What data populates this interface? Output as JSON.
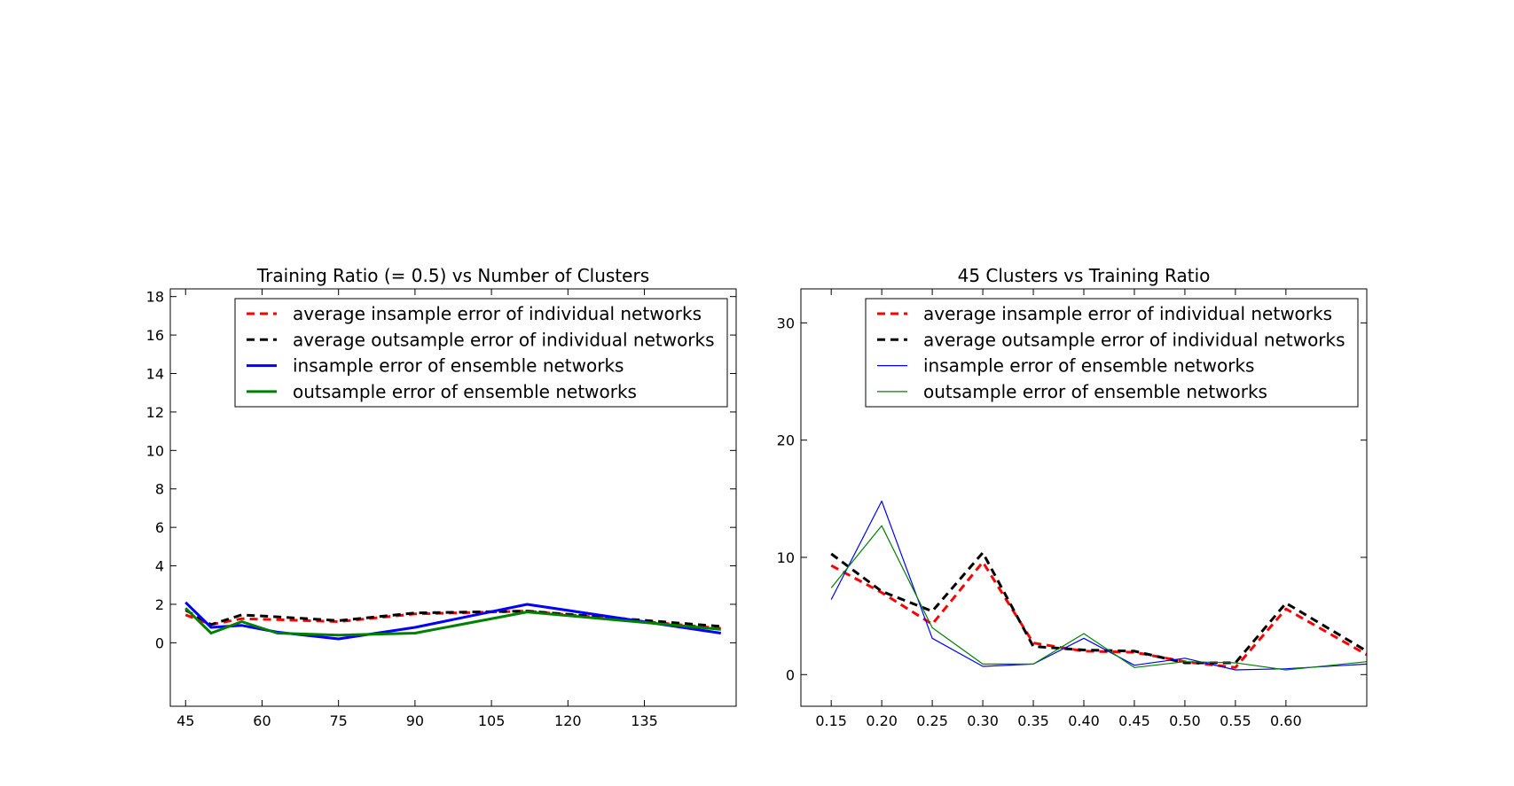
{
  "chart_data": [
    {
      "type": "line",
      "title": "Training Ratio (= 0.5) vs Number of Clusters",
      "xlabel": "",
      "ylabel": "",
      "x": [
        45,
        50,
        56,
        63,
        75,
        90,
        112,
        150
      ],
      "xlim": [
        42,
        153
      ],
      "ylim": [
        -3.3,
        18.4
      ],
      "xticks": [
        "45",
        "60",
        "75",
        "90",
        "105",
        "120",
        "135"
      ],
      "yticks": [
        "0",
        "2",
        "4",
        "6",
        "8",
        "10",
        "12",
        "14",
        "16",
        "18"
      ],
      "legend_position": "top-right",
      "series": [
        {
          "name": "average insample error of individual networks",
          "color": "#ff0000",
          "style": "dashed",
          "width": 3,
          "values": [
            1.45,
            0.95,
            1.25,
            1.2,
            1.1,
            1.5,
            1.65,
            0.75
          ]
        },
        {
          "name": "average outsample error of individual networks",
          "color": "#000000",
          "style": "dashed",
          "width": 3,
          "values": [
            1.7,
            0.95,
            1.45,
            1.35,
            1.15,
            1.55,
            1.65,
            0.85
          ]
        },
        {
          "name": "insample error of ensemble networks",
          "color": "#0000ff",
          "style": "solid",
          "width": 3,
          "values": [
            2.1,
            0.8,
            0.9,
            0.55,
            0.2,
            0.8,
            2.0,
            0.5
          ]
        },
        {
          "name": "outsample error of ensemble networks",
          "color": "#008000",
          "style": "solid",
          "width": 3,
          "values": [
            1.8,
            0.5,
            1.1,
            0.5,
            0.4,
            0.5,
            1.6,
            0.7
          ]
        }
      ]
    },
    {
      "type": "line",
      "title": "45 Clusters vs Training Ratio",
      "xlabel": "",
      "ylabel": "",
      "x": [
        0.15,
        0.2,
        0.25,
        0.3,
        0.35,
        0.4,
        0.45,
        0.5,
        0.55,
        0.6,
        0.68
      ],
      "xlim": [
        0.12,
        0.68
      ],
      "ylim": [
        -2.7,
        32.9
      ],
      "xticks": [
        "0.15",
        "0.20",
        "0.25",
        "0.30",
        "0.35",
        "0.40",
        "0.45",
        "0.50",
        "0.55",
        "0.60"
      ],
      "yticks": [
        "0",
        "10",
        "20",
        "30"
      ],
      "legend_position": "top-right",
      "series": [
        {
          "name": "average insample error of individual networks",
          "color": "#ff0000",
          "style": "dashed",
          "width": 3,
          "values": [
            9.3,
            7.0,
            4.3,
            9.6,
            2.7,
            2.0,
            1.9,
            1.1,
            0.6,
            5.6,
            1.7
          ]
        },
        {
          "name": "average outsample error of individual networks",
          "color": "#000000",
          "style": "dashed",
          "width": 3,
          "values": [
            10.3,
            7.1,
            5.4,
            10.4,
            2.4,
            2.1,
            2.0,
            1.0,
            1.0,
            6.1,
            2.0
          ]
        },
        {
          "name": "insample error of ensemble networks",
          "color": "#0000ff",
          "style": "solid",
          "width": 1.2,
          "values": [
            6.4,
            14.8,
            3.1,
            0.7,
            0.9,
            3.1,
            0.8,
            1.4,
            0.4,
            0.5,
            0.9
          ]
        },
        {
          "name": "outsample error of ensemble networks",
          "color": "#008000",
          "style": "solid",
          "width": 1.2,
          "values": [
            7.4,
            12.7,
            4.0,
            0.9,
            0.9,
            3.5,
            0.6,
            1.1,
            1.0,
            0.4,
            1.1
          ]
        }
      ]
    }
  ]
}
